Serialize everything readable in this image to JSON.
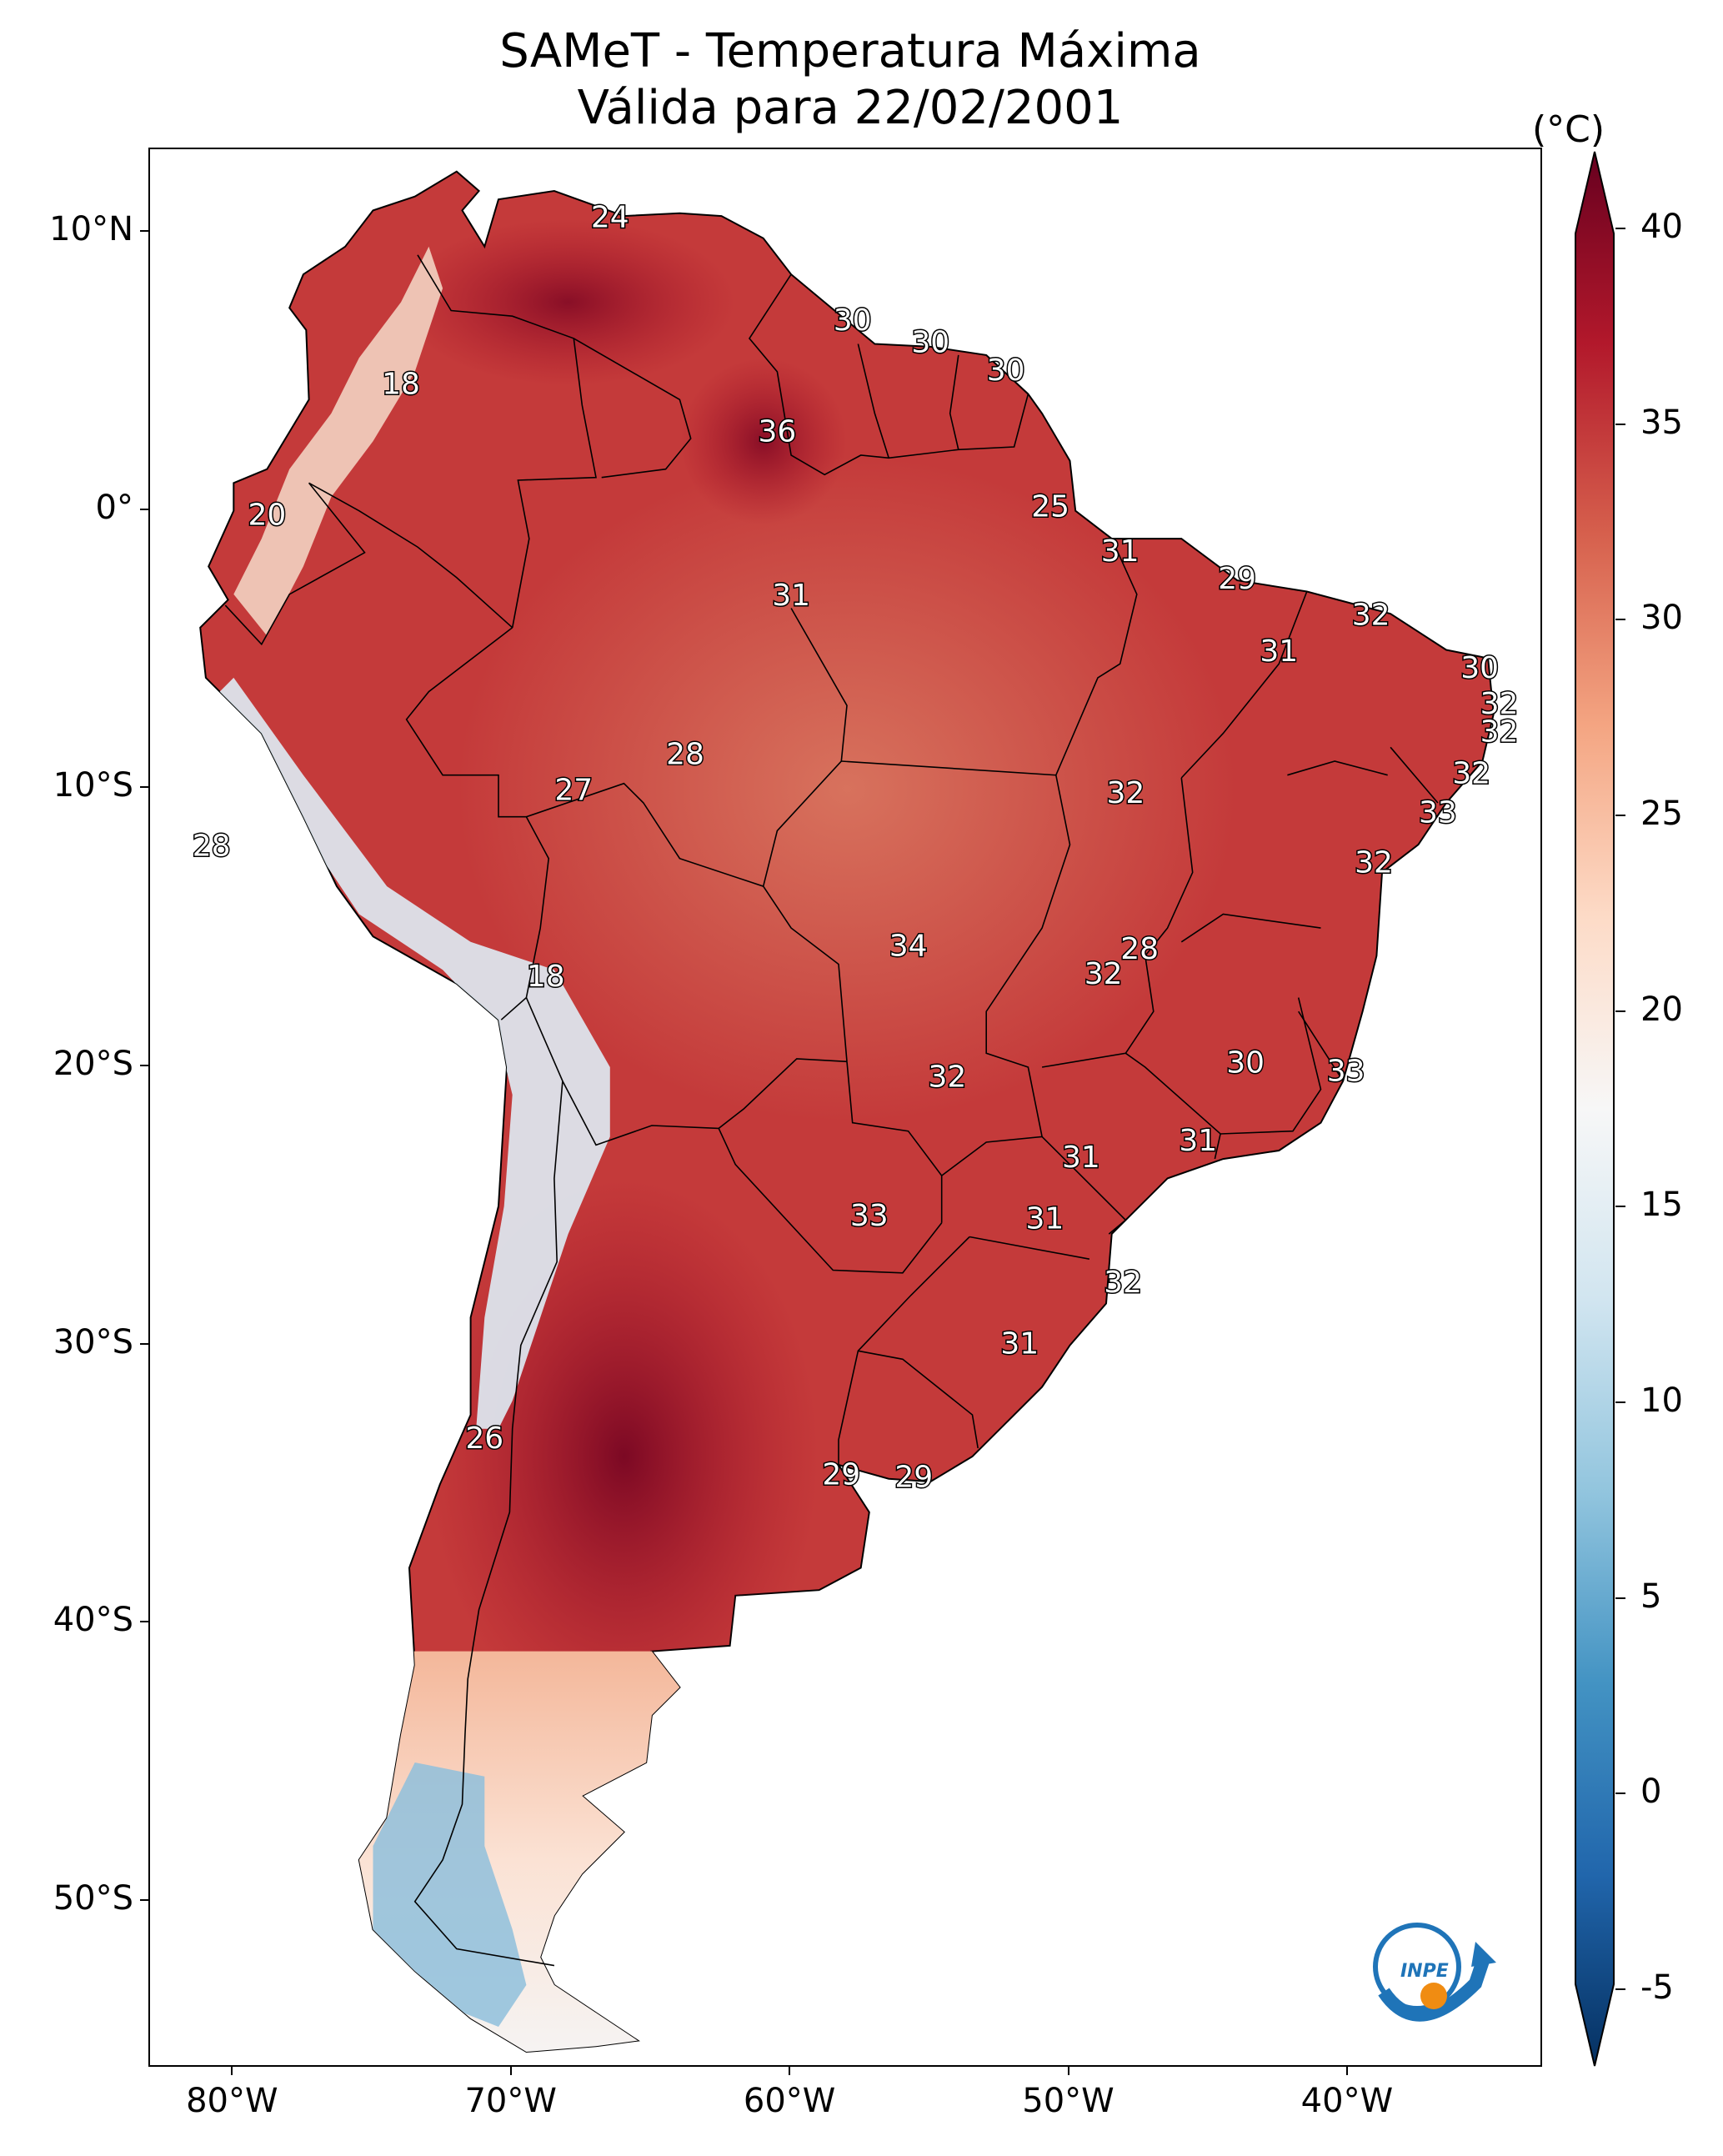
{
  "title": {
    "line1": "SAMeT - Temperatura Máxima",
    "line2": "Válida para 22/02/2001"
  },
  "map": {
    "lat_ticks": [
      {
        "label": "10°N",
        "lat": 10
      },
      {
        "label": "0°",
        "lat": 0
      },
      {
        "label": "10°S",
        "lat": -10
      },
      {
        "label": "20°S",
        "lat": -20
      },
      {
        "label": "30°S",
        "lat": -30
      },
      {
        "label": "40°S",
        "lat": -40
      },
      {
        "label": "50°S",
        "lat": -50
      }
    ],
    "lon_ticks": [
      {
        "label": "80°W",
        "lon": -80
      },
      {
        "label": "70°W",
        "lon": -70
      },
      {
        "label": "60°W",
        "lon": -60
      },
      {
        "label": "50°W",
        "lon": -50
      },
      {
        "label": "40°W",
        "lon": -40
      }
    ],
    "extent": {
      "lon_min": -83,
      "lon_max": -33,
      "lat_min": -56,
      "lat_max": 13
    },
    "contour_labels": [
      {
        "text": "24",
        "lon": -66.5,
        "lat": 10.5
      },
      {
        "text": "18",
        "lon": -74,
        "lat": 4.5
      },
      {
        "text": "30",
        "lon": -57.8,
        "lat": 6.8
      },
      {
        "text": "30",
        "lon": -55,
        "lat": 6
      },
      {
        "text": "30",
        "lon": -52.3,
        "lat": 5
      },
      {
        "text": "36",
        "lon": -60.5,
        "lat": 2.8
      },
      {
        "text": "20",
        "lon": -78.8,
        "lat": -0.2
      },
      {
        "text": "25",
        "lon": -50.7,
        "lat": 0.1
      },
      {
        "text": "31",
        "lon": -48.2,
        "lat": -1.5
      },
      {
        "text": "29",
        "lon": -44,
        "lat": -2.5
      },
      {
        "text": "31",
        "lon": -60,
        "lat": -3.1
      },
      {
        "text": "32",
        "lon": -39.2,
        "lat": -3.8
      },
      {
        "text": "31",
        "lon": -42.5,
        "lat": -5.1
      },
      {
        "text": "30",
        "lon": -35.3,
        "lat": -5.7
      },
      {
        "text": "32",
        "lon": -34.6,
        "lat": -7
      },
      {
        "text": "32",
        "lon": -34.6,
        "lat": -8
      },
      {
        "text": "28",
        "lon": -63.8,
        "lat": -8.8
      },
      {
        "text": "27",
        "lon": -67.8,
        "lat": -10.1
      },
      {
        "text": "32",
        "lon": -48,
        "lat": -10.2
      },
      {
        "text": "32",
        "lon": -35.6,
        "lat": -9.5
      },
      {
        "text": "33",
        "lon": -36.8,
        "lat": -10.9
      },
      {
        "text": "28",
        "lon": -80.8,
        "lat": -12.1
      },
      {
        "text": "32",
        "lon": -39.1,
        "lat": -12.7
      },
      {
        "text": "34",
        "lon": -55.8,
        "lat": -15.7
      },
      {
        "text": "28",
        "lon": -47.5,
        "lat": -15.8
      },
      {
        "text": "18",
        "lon": -68.8,
        "lat": -16.8
      },
      {
        "text": "32",
        "lon": -48.8,
        "lat": -16.7
      },
      {
        "text": "30",
        "lon": -43.7,
        "lat": -19.9
      },
      {
        "text": "33",
        "lon": -40.1,
        "lat": -20.2
      },
      {
        "text": "32",
        "lon": -54.4,
        "lat": -20.4
      },
      {
        "text": "31",
        "lon": -45.4,
        "lat": -22.7
      },
      {
        "text": "31",
        "lon": -49.6,
        "lat": -23.3
      },
      {
        "text": "31",
        "lon": -50.9,
        "lat": -25.5
      },
      {
        "text": "33",
        "lon": -57.2,
        "lat": -25.4
      },
      {
        "text": "32",
        "lon": -48.1,
        "lat": -27.8
      },
      {
        "text": "31",
        "lon": -51.8,
        "lat": -30
      },
      {
        "text": "26",
        "lon": -71,
        "lat": -33.4
      },
      {
        "text": "29",
        "lon": -58.2,
        "lat": -34.7
      },
      {
        "text": "29",
        "lon": -55.6,
        "lat": -34.8
      }
    ]
  },
  "colorbar": {
    "unit": "(°C)",
    "min": -7,
    "max": 42,
    "ticks": [
      "-5",
      "0",
      "5",
      "10",
      "15",
      "20",
      "25",
      "30",
      "35",
      "40"
    ],
    "colors": [
      "#053061",
      "#2166ac",
      "#4393c3",
      "#92c5de",
      "#d1e5f0",
      "#f7f7f7",
      "#fddbc7",
      "#f4a582",
      "#d6604d",
      "#b2182b",
      "#67001f"
    ]
  },
  "logo": {
    "text": "INPE"
  }
}
